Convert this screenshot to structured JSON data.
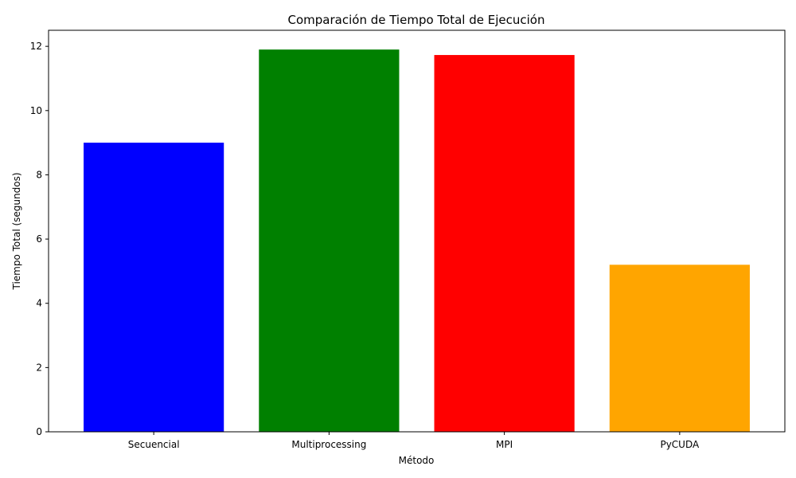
{
  "chart_data": {
    "type": "bar",
    "title": "Comparación de Tiempo Total de Ejecución",
    "xlabel": "Método",
    "ylabel": "Tiempo Total (segundos)",
    "categories": [
      "Secuencial",
      "Multiprocessing",
      "MPI",
      "PyCUDA"
    ],
    "values": [
      9.0,
      11.9,
      11.73,
      5.2
    ],
    "colors": [
      "#0000ff",
      "#008000",
      "#ff0000",
      "#ffa500"
    ],
    "ylim": [
      0,
      12.5
    ],
    "yticks": [
      0,
      2,
      4,
      6,
      8,
      10,
      12
    ],
    "grid": false,
    "legend": "none"
  }
}
